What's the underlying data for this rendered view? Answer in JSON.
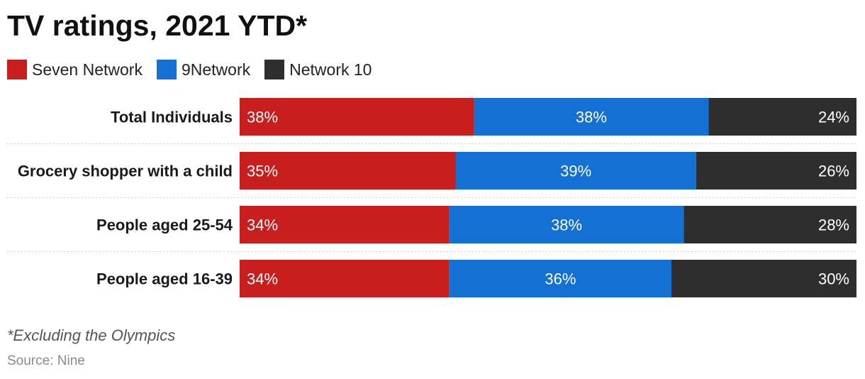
{
  "chart_data": {
    "type": "bar",
    "orientation": "horizontal",
    "stacked": true,
    "normalized": true,
    "title": "TV ratings, 2021 YTD*",
    "categories": [
      "Total Individuals",
      "Grocery shopper with a child",
      "People aged 25-54",
      "People aged 16-39"
    ],
    "series": [
      {
        "name": "Seven Network",
        "color": "#c81e1e",
        "values": [
          38,
          35,
          34,
          34
        ],
        "labels": [
          "38%",
          "35%",
          "34%",
          "34%"
        ]
      },
      {
        "name": "9Network",
        "color": "#1470d2",
        "values": [
          38,
          39,
          38,
          36
        ],
        "labels": [
          "38%",
          "39%",
          "38%",
          "36%"
        ]
      },
      {
        "name": "Network 10",
        "color": "#2e2e2e",
        "values": [
          24,
          26,
          28,
          30
        ],
        "labels": [
          "24%",
          "26%",
          "28%",
          "30%"
        ]
      }
    ],
    "legend_position": "top-left",
    "grid": false,
    "footnote": "*Excluding the Olympics",
    "source": "Source: Nine"
  }
}
